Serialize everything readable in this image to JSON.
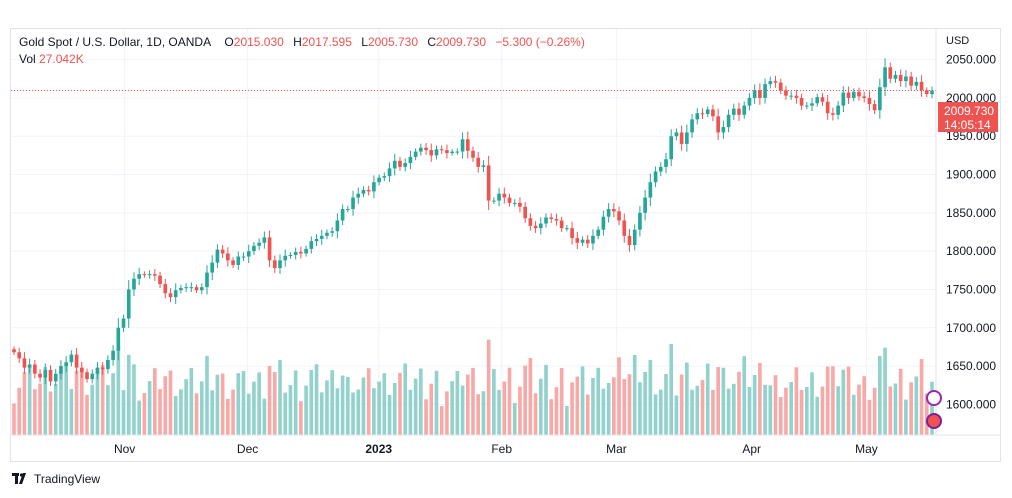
{
  "legend": {
    "symbol": "Gold Spot / U.S. Dollar, 1D, OANDA",
    "open_label": "O",
    "open": "2015.030",
    "high_label": "H",
    "high": "2017.595",
    "low_label": "L",
    "low": "2005.730",
    "close_label": "C",
    "close": "2009.730",
    "change": "−5.300 (−0.26%)",
    "vol_label": "Vol",
    "vol": "27.042K"
  },
  "price_tag": {
    "price": "2009.730",
    "countdown": "14:05:14"
  },
  "currency": "USD",
  "footer": {
    "brand": "TradingView"
  },
  "colors": {
    "up": "#26a69a",
    "down": "#ef5350",
    "vol_up": "#92d2cc",
    "vol_down": "#f7a9a7"
  },
  "chart_data": {
    "type": "candlestick",
    "title": "Gold Spot / U.S. Dollar, 1D, OANDA",
    "currency": "USD",
    "ylim": [
      1560,
      2090
    ],
    "y_ticks": [
      "1600.000",
      "1650.000",
      "1700.000",
      "1750.000",
      "1800.000",
      "1850.000",
      "1900.000",
      "1950.000",
      "2000.000",
      "2050.000"
    ],
    "x_ticks": [
      {
        "label": "Nov",
        "date": "2022-11-01"
      },
      {
        "label": "Dec",
        "date": "2022-12-01"
      },
      {
        "label": "2023",
        "date": "2023-01-02"
      },
      {
        "label": "Feb",
        "date": "2023-02-01"
      },
      {
        "label": "Mar",
        "date": "2023-03-01"
      },
      {
        "label": "Apr",
        "date": "2023-04-03"
      },
      {
        "label": "May",
        "date": "2023-05-01"
      }
    ],
    "first_date": "2022-10-05",
    "last_date": "2023-05-17",
    "last_close": 2009.73,
    "closes": [
      1668,
      1660,
      1648,
      1652,
      1640,
      1635,
      1645,
      1630,
      1640,
      1650,
      1655,
      1665,
      1648,
      1642,
      1633,
      1640,
      1648,
      1646,
      1658,
      1670,
      1700,
      1712,
      1750,
      1764,
      1770,
      1769,
      1770,
      1768,
      1757,
      1745,
      1740,
      1749,
      1752,
      1753,
      1753,
      1749,
      1753,
      1772,
      1785,
      1802,
      1797,
      1788,
      1782,
      1793,
      1793,
      1800,
      1807,
      1811,
      1818,
      1788,
      1778,
      1788,
      1794,
      1795,
      1799,
      1797,
      1803,
      1813,
      1816,
      1820,
      1824,
      1826,
      1840,
      1855,
      1855,
      1870,
      1875,
      1880,
      1878,
      1890,
      1896,
      1898,
      1908,
      1918,
      1910,
      1915,
      1923,
      1930,
      1935,
      1932,
      1925,
      1933,
      1932,
      1928,
      1930,
      1930,
      1946,
      1931,
      1922,
      1910,
      1912,
      1866,
      1866,
      1875,
      1870,
      1863,
      1863,
      1858,
      1843,
      1833,
      1830,
      1836,
      1844,
      1842,
      1840,
      1830,
      1830,
      1817,
      1811,
      1815,
      1810,
      1820,
      1828,
      1845,
      1855,
      1852,
      1840,
      1820,
      1808,
      1828,
      1850,
      1870,
      1890,
      1904,
      1910,
      1920,
      1950,
      1955,
      1940,
      1955,
      1972,
      1980,
      1979,
      1985,
      1976,
      1955,
      1962,
      1978,
      1986,
      1978,
      1990,
      2000,
      2010,
      2000,
      2018,
      2022,
      2020,
      2010,
      2003,
      2003,
      2000,
      1990,
      1990,
      1993,
      2001,
      1995,
      1980,
      1978,
      1990,
      2007,
      2000,
      2008,
      2002,
      2000,
      1992,
      1984,
      2014,
      2040,
      2025,
      2030,
      2022,
      2028,
      2016,
      2021,
      2010,
      2005,
      2009.73
    ]
  }
}
